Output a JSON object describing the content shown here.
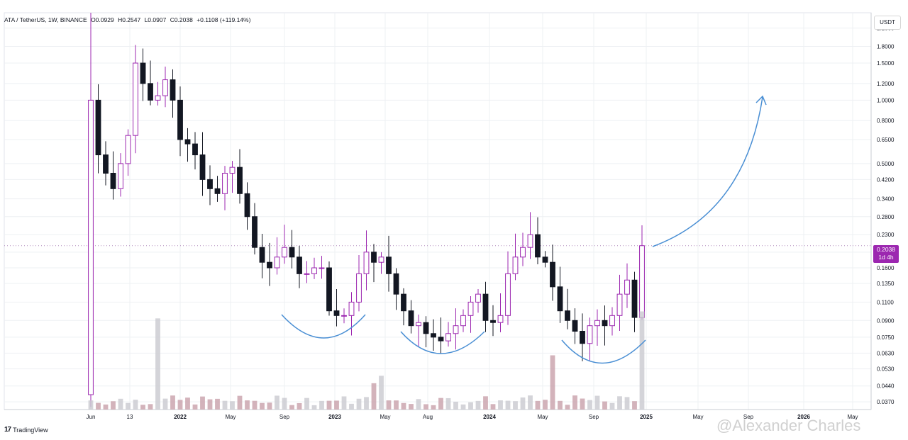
{
  "header": {
    "symbol": "ATA / TetherUS, 1W, BINANCE",
    "open": "O0.0929",
    "high": "H0.2547",
    "low": "L0.0907",
    "close": "C0.2038",
    "change": "+0.1108 (+119.14%)"
  },
  "price_axis": {
    "currency": "USDT"
  },
  "last_price": {
    "value": "0.2038",
    "countdown": "1d 4h"
  },
  "branding": {
    "logo": "17",
    "name": "TradingView"
  },
  "watermark": {
    "text": "@Alexander Charles"
  },
  "colors": {
    "up": "#9c27b0",
    "down": "#131722",
    "annotation": "#4a8fd4",
    "volume": "#c8a0aa"
  },
  "chart_data": {
    "type": "candlestick",
    "y_scale": "log",
    "ylim": [
      0.034,
      2.6
    ],
    "price_ticks": [
      "2.2000",
      "1.8000",
      "1.5000",
      "1.2000",
      "1.0000",
      "0.8000",
      "0.6500",
      "0.5000",
      "0.4200",
      "0.3400",
      "0.2800",
      "0.2300",
      "0.1900",
      "0.1600",
      "0.1350",
      "0.1100",
      "0.0900",
      "0.0750",
      "0.0630",
      "0.0530",
      "0.0440",
      "0.0370"
    ],
    "x_ticks": [
      "Jun",
      "13",
      "2022",
      "May",
      "Sep",
      "2023",
      "May",
      "Aug",
      "2024",
      "May",
      "Sep",
      "2025",
      "May",
      "Sep",
      "2026",
      "May"
    ],
    "weekly_close_path": [
      1.0,
      0.55,
      0.45,
      0.38,
      0.5,
      0.68,
      1.5,
      1.2,
      1.0,
      1.05,
      1.25,
      1.0,
      0.65,
      0.62,
      0.55,
      0.42,
      0.38,
      0.36,
      0.45,
      0.48,
      0.36,
      0.28,
      0.2,
      0.17,
      0.16,
      0.18,
      0.2,
      0.18,
      0.15,
      0.15,
      0.16,
      0.16,
      0.1,
      0.095,
      0.095,
      0.11,
      0.15,
      0.19,
      0.17,
      0.18,
      0.15,
      0.12,
      0.1,
      0.085,
      0.088,
      0.078,
      0.075,
      0.072,
      0.078,
      0.085,
      0.095,
      0.11,
      0.12,
      0.09,
      0.088,
      0.095,
      0.15,
      0.18,
      0.2,
      0.23,
      0.18,
      0.17,
      0.13,
      0.1,
      0.09,
      0.08,
      0.07,
      0.085,
      0.09,
      0.085,
      0.095,
      0.12,
      0.14,
      0.093,
      0.2038
    ],
    "last": {
      "open": 0.0929,
      "high": 0.2547,
      "low": 0.0907,
      "close": 0.2038
    },
    "annotations": [
      {
        "type": "arc",
        "label": "rounded bottom 1"
      },
      {
        "type": "arc",
        "label": "rounded bottom 2"
      },
      {
        "type": "arc",
        "label": "rounded bottom 3"
      },
      {
        "type": "arrow",
        "label": "projected breakout"
      }
    ]
  }
}
